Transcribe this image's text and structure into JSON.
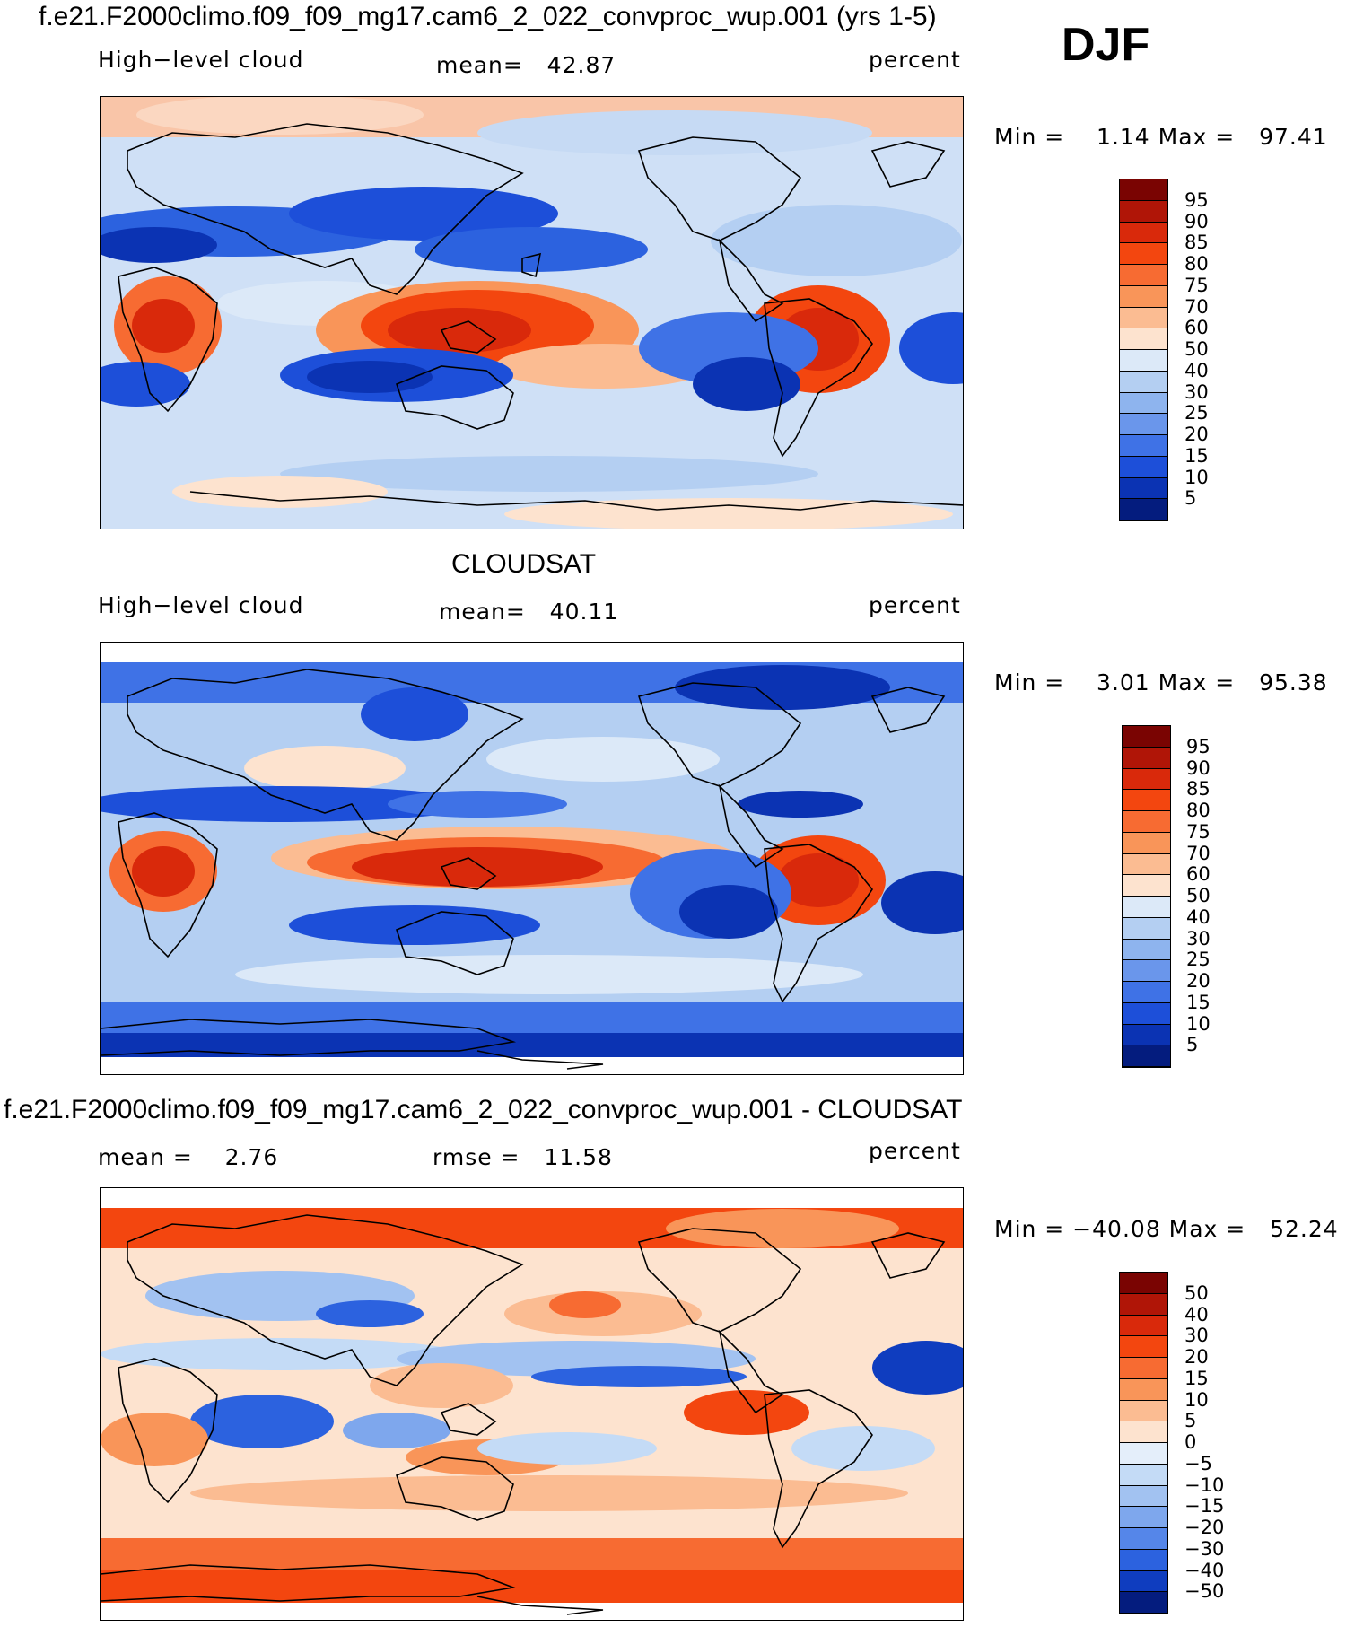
{
  "season": "DJF",
  "panels": [
    {
      "title": "f.e21.F2000climo.f09_f09_mg17.cam6_2_022_convproc_wup.001 (yrs 1-5)",
      "left_label": "High−level cloud",
      "center_label": "mean=   42.87",
      "right_label": "percent",
      "minmax": "Min =    1.14 Max =   97.41",
      "colorbar": {
        "labels": [
          "95",
          "90",
          "85",
          "80",
          "75",
          "70",
          "60",
          "50",
          "40",
          "30",
          "25",
          "20",
          "15",
          "10",
          "5"
        ],
        "colors": [
          "#7a0402",
          "#b01507",
          "#d9290b",
          "#f3460f",
          "#f76b32",
          "#f99559",
          "#fbbc92",
          "#fde3cf",
          "#dce9f8",
          "#b4cff2",
          "#8eb4ee",
          "#6a96eb",
          "#3f72e6",
          "#1d4fd9",
          "#0b33b3",
          "#041c7e"
        ]
      }
    },
    {
      "title": "CLOUDSAT",
      "left_label": "High−level cloud",
      "center_label": "mean=   40.11",
      "right_label": "percent",
      "minmax": "Min =    3.01 Max =   95.38",
      "colorbar": {
        "labels": [
          "95",
          "90",
          "85",
          "80",
          "75",
          "70",
          "60",
          "50",
          "40",
          "30",
          "25",
          "20",
          "15",
          "10",
          "5"
        ],
        "colors": [
          "#7a0402",
          "#b01507",
          "#d9290b",
          "#f3460f",
          "#f76b32",
          "#f99559",
          "#fbbc92",
          "#fde3cf",
          "#dce9f8",
          "#b4cff2",
          "#8eb4ee",
          "#6a96eb",
          "#3f72e6",
          "#1d4fd9",
          "#0b33b3",
          "#041c7e"
        ]
      }
    },
    {
      "title": "f.e21.F2000climo.f09_f09_mg17.cam6_2_022_convproc_wup.001 - CLOUDSAT",
      "left_label": "mean =    2.76",
      "center_label": "rmse =   11.58",
      "right_label": "percent",
      "minmax": "Min = −40.08 Max =   52.24",
      "colorbar": {
        "labels": [
          "50",
          "40",
          "30",
          "20",
          "15",
          "10",
          "5",
          "0",
          "−5",
          "−10",
          "−15",
          "−20",
          "−30",
          "−40",
          "−50"
        ],
        "colors": [
          "#7a0402",
          "#b01507",
          "#d9290b",
          "#f3460f",
          "#f76b32",
          "#f99559",
          "#fbbc92",
          "#fde3cf",
          "#e4eefa",
          "#c4dbf6",
          "#a2c2f1",
          "#7ea7ed",
          "#5586e9",
          "#2c62df",
          "#0f3dbf",
          "#041c7e"
        ]
      }
    }
  ]
}
